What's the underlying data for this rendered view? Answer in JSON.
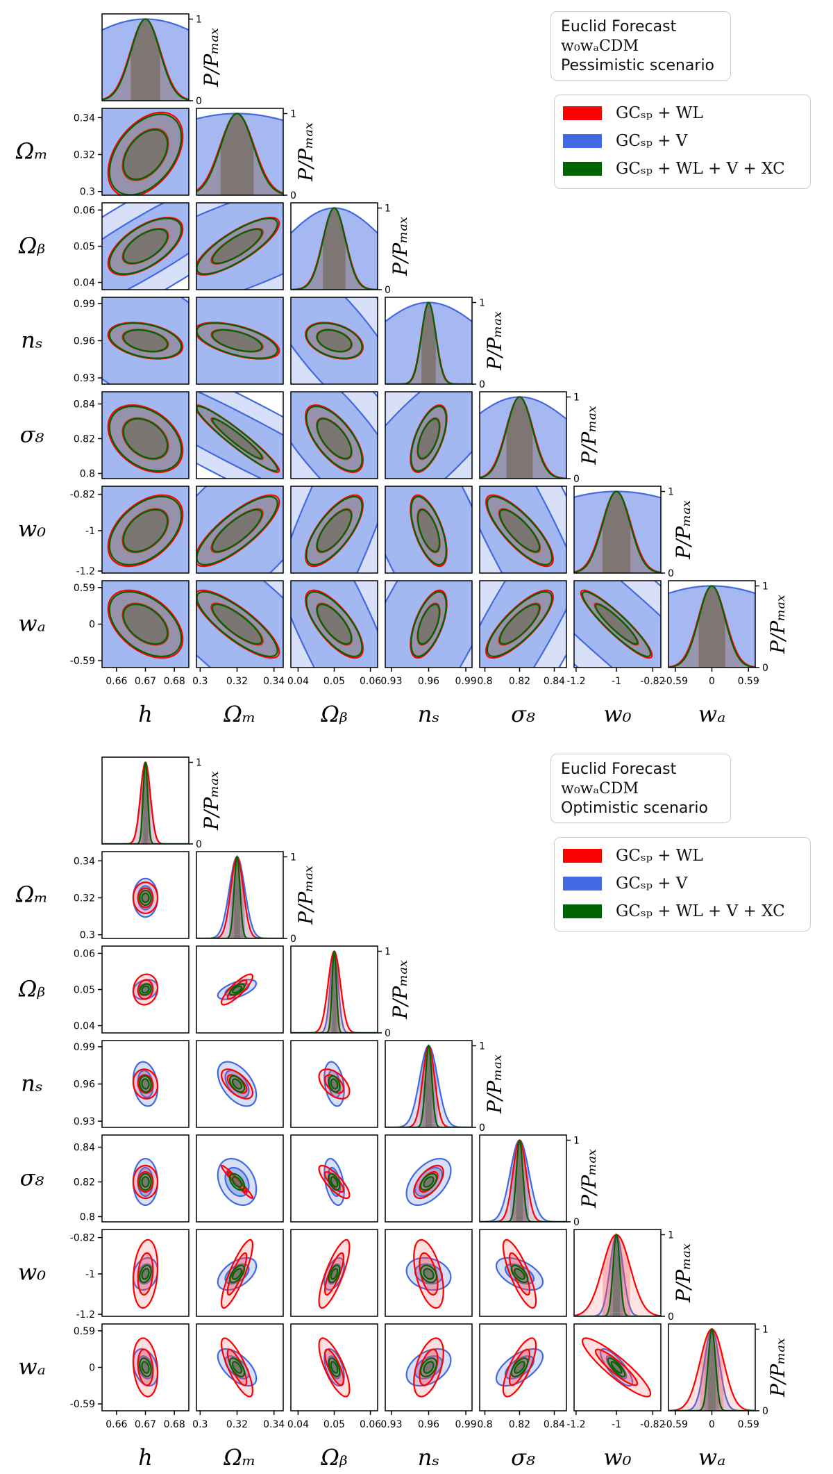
{
  "chart_data": [
    {
      "type": "corner",
      "panel": "pessimistic",
      "title_lines": [
        "Euclid Forecast",
        "w0waCDM",
        "Pessimistic scenario"
      ],
      "title_display": {
        "line1": "Euclid Forecast",
        "model": "w₀wₐCDM",
        "scenario": "Pessimistic scenario"
      },
      "diag_ylabel": "P/Pmax",
      "parameters": [
        {
          "key": "h",
          "label": "h",
          "fiducial": 0.67,
          "range": [
            0.655,
            0.685
          ],
          "ticks": [
            0.66,
            0.67,
            0.68
          ],
          "tick_labels": [
            "0.66",
            "0.67",
            "0.68"
          ]
        },
        {
          "key": "Om",
          "label": "Ωm",
          "fiducial": 0.32,
          "range": [
            0.298,
            0.345
          ],
          "ticks": [
            0.3,
            0.32,
            0.34
          ],
          "tick_labels": [
            "0.3",
            "0.32",
            "0.34"
          ]
        },
        {
          "key": "Ob",
          "label": "Ωb",
          "fiducial": 0.05,
          "range": [
            0.038,
            0.062
          ],
          "ticks": [
            0.04,
            0.05,
            0.06
          ],
          "tick_labels": [
            "0.04",
            "0.05",
            "0.06"
          ]
        },
        {
          "key": "ns",
          "label": "ns",
          "fiducial": 0.96,
          "range": [
            0.925,
            0.995
          ],
          "ticks": [
            0.93,
            0.96,
            0.99
          ],
          "tick_labels": [
            "0.93",
            "0.96",
            "0.99"
          ]
        },
        {
          "key": "s8",
          "label": "σ8",
          "fiducial": 0.82,
          "range": [
            0.797,
            0.847
          ],
          "ticks": [
            0.8,
            0.82,
            0.84
          ],
          "tick_labels": [
            "0.8",
            "0.82",
            "0.84"
          ]
        },
        {
          "key": "w0",
          "label": "w0",
          "fiducial": -1.0,
          "range": [
            -1.21,
            -0.78
          ],
          "ticks": [
            -1.2,
            -1.0,
            -0.82
          ],
          "tick_labels": [
            "-1.2",
            "-1",
            "-0.82"
          ]
        },
        {
          "key": "wa",
          "label": "wa",
          "fiducial": 0.0,
          "range": [
            -0.7,
            0.7
          ],
          "ticks": [
            -0.59,
            0.0,
            0.59
          ],
          "tick_labels": [
            "-0.59",
            "0",
            "0.59"
          ]
        }
      ],
      "diag_ticks": [
        "0",
        "1"
      ],
      "series": [
        {
          "name": "GCsp + WL",
          "color": "#ff0000",
          "sigma": {
            "h": 0.0052,
            "Om": 0.0092,
            "Ob": 0.0032,
            "ns": 0.0059,
            "s8": 0.0078,
            "w0": 0.071,
            "wa": 0.22
          },
          "corr": {
            "h-Om": 0.43,
            "h-Ob": 0.6,
            "h-ns": -0.33,
            "h-s8": -0.35,
            "h-w0": 0.45,
            "h-wa": -0.45,
            "Om-Ob": 0.8,
            "Om-ns": -0.55,
            "Om-s8": -0.95,
            "Om-w0": 0.8,
            "Om-wa": -0.82,
            "Ob-ns": -0.35,
            "Ob-s8": -0.65,
            "Ob-w0": 0.72,
            "Ob-wa": -0.72,
            "ns-s8": 0.6,
            "ns-w0": -0.6,
            "ns-wa": 0.6,
            "s8-w0": -0.8,
            "s8-wa": 0.8,
            "w0-wa": -0.92
          }
        },
        {
          "name": "GCsp + V",
          "color": "#4169e1",
          "sigma": {
            "h": 0.028,
            "Om": 0.06,
            "Ob": 0.014,
            "ns": 0.048,
            "s8": 0.034,
            "w0": 0.55,
            "wa": 1.6
          },
          "corr": {
            "h-Om": 0.5,
            "h-Ob": 0.9,
            "h-ns": -0.7,
            "h-s8": -0.6,
            "h-w0": 0.6,
            "h-wa": -0.6,
            "Om-Ob": 0.8,
            "Om-ns": -0.7,
            "Om-s8": -0.95,
            "Om-w0": 0.9,
            "Om-wa": -0.9,
            "Ob-ns": -0.8,
            "Ob-s8": -0.8,
            "Ob-w0": 0.85,
            "Ob-wa": -0.85,
            "ns-s8": 0.8,
            "ns-w0": -0.8,
            "ns-wa": 0.8,
            "s8-w0": -0.9,
            "s8-wa": 0.9,
            "w0-wa": -0.95
          }
        },
        {
          "name": "GCsp + WL + V + XC",
          "color": "#006400",
          "sigma": {
            "h": 0.005,
            "Om": 0.0088,
            "Ob": 0.0031,
            "ns": 0.0057,
            "s8": 0.0075,
            "w0": 0.068,
            "wa": 0.21
          },
          "corr": {
            "h-Om": 0.43,
            "h-Ob": 0.6,
            "h-ns": -0.33,
            "h-s8": -0.35,
            "h-w0": 0.45,
            "h-wa": -0.45,
            "Om-Ob": 0.8,
            "Om-ns": -0.55,
            "Om-s8": -0.95,
            "Om-w0": 0.8,
            "Om-wa": -0.82,
            "Ob-ns": -0.35,
            "Ob-s8": -0.65,
            "Ob-w0": 0.72,
            "Ob-wa": -0.72,
            "ns-s8": 0.6,
            "ns-w0": -0.6,
            "ns-wa": 0.6,
            "s8-w0": -0.8,
            "s8-wa": 0.8,
            "w0-wa": -0.92
          }
        }
      ]
    },
    {
      "type": "corner",
      "panel": "optimistic",
      "title_lines": [
        "Euclid Forecast",
        "w0waCDM",
        "Optimistic scenario"
      ],
      "title_display": {
        "line1": "Euclid Forecast",
        "model": "w₀wₐCDM",
        "scenario": "Optimistic scenario"
      },
      "diag_ylabel": "P/Pmax",
      "parameters": [
        {
          "key": "h",
          "label": "h",
          "fiducial": 0.67,
          "range": [
            0.655,
            0.685
          ],
          "ticks": [
            0.66,
            0.67,
            0.68
          ],
          "tick_labels": [
            "0.66",
            "0.67",
            "0.68"
          ]
        },
        {
          "key": "Om",
          "label": "Ωm",
          "fiducial": 0.32,
          "range": [
            0.298,
            0.345
          ],
          "ticks": [
            0.3,
            0.32,
            0.34
          ],
          "tick_labels": [
            "0.3",
            "0.32",
            "0.34"
          ]
        },
        {
          "key": "Ob",
          "label": "Ωb",
          "fiducial": 0.05,
          "range": [
            0.038,
            0.062
          ],
          "ticks": [
            0.04,
            0.05,
            0.06
          ],
          "tick_labels": [
            "0.04",
            "0.05",
            "0.06"
          ]
        },
        {
          "key": "ns",
          "label": "ns",
          "fiducial": 0.96,
          "range": [
            0.925,
            0.995
          ],
          "ticks": [
            0.93,
            0.96,
            0.99
          ],
          "tick_labels": [
            "0.93",
            "0.96",
            "0.99"
          ]
        },
        {
          "key": "s8",
          "label": "σ8",
          "fiducial": 0.82,
          "range": [
            0.797,
            0.847
          ],
          "ticks": [
            0.8,
            0.82,
            0.84
          ],
          "tick_labels": [
            "0.8",
            "0.82",
            "0.84"
          ]
        },
        {
          "key": "w0",
          "label": "w0",
          "fiducial": -1.0,
          "range": [
            -1.21,
            -0.78
          ],
          "ticks": [
            -1.2,
            -1.0,
            -0.82
          ],
          "tick_labels": [
            "-1.2",
            "-1",
            "-0.82"
          ]
        },
        {
          "key": "wa",
          "label": "wa",
          "fiducial": 0.0,
          "range": [
            -0.7,
            0.7
          ],
          "ticks": [
            -0.59,
            0.0,
            0.59
          ],
          "tick_labels": [
            "-0.59",
            "0",
            "0.59"
          ]
        }
      ],
      "diag_ticks": [
        "0",
        "1"
      ],
      "series": [
        {
          "name": "GCsp + WL",
          "color": "#ff0000",
          "sigma": {
            "h": 0.0017,
            "Om": 0.0034,
            "Ob": 0.0017,
            "ns": 0.0048,
            "s8": 0.0038,
            "w0": 0.068,
            "wa": 0.19
          },
          "corr": {
            "h-Om": 0.0,
            "h-Ob": 0.1,
            "h-ns": -0.1,
            "h-s8": 0.0,
            "h-w0": 0.2,
            "h-wa": -0.2,
            "Om-Ob": 0.85,
            "Om-ns": -0.6,
            "Om-s8": -0.97,
            "Om-w0": 0.85,
            "Om-wa": -0.8,
            "Ob-ns": -0.5,
            "Ob-s8": -0.8,
            "Ob-w0": 0.8,
            "Ob-wa": -0.75,
            "ns-s8": 0.6,
            "ns-w0": -0.5,
            "ns-wa": 0.5,
            "s8-w0": -0.8,
            "s8-wa": 0.75,
            "w0-wa": -0.9
          }
        },
        {
          "name": "GCsp + V",
          "color": "#4169e1",
          "sigma": {
            "h": 0.0017,
            "Om": 0.0042,
            "Ob": 0.0011,
            "ns": 0.0072,
            "s8": 0.0054,
            "w0": 0.032,
            "wa": 0.12
          },
          "corr": {
            "h-Om": 0.0,
            "h-Ob": 0.2,
            "h-ns": -0.2,
            "h-s8": 0.0,
            "h-w0": 0.2,
            "h-wa": -0.3,
            "Om-Ob": 0.6,
            "Om-ns": -0.5,
            "Om-s8": -0.3,
            "Om-w0": 0.5,
            "Om-wa": -0.6,
            "Ob-ns": -0.3,
            "Ob-s8": -0.4,
            "Ob-w0": 0.5,
            "Ob-wa": -0.5,
            "ns-s8": 0.5,
            "ns-w0": -0.2,
            "ns-wa": 0.4,
            "s8-w0": -0.5,
            "s8-wa": 0.6,
            "w0-wa": -0.8
          }
        },
        {
          "name": "GCsp + WL + V + XC",
          "color": "#006400",
          "sigma": {
            "h": 0.0008,
            "Om": 0.0016,
            "Ob": 0.0006,
            "ns": 0.0026,
            "s8": 0.0019,
            "w0": 0.017,
            "wa": 0.06
          },
          "corr": {
            "h-Om": 0.0,
            "h-Ob": 0.2,
            "h-ns": -0.1,
            "h-s8": 0.0,
            "h-w0": 0.3,
            "h-wa": -0.3,
            "Om-Ob": 0.6,
            "Om-ns": -0.5,
            "Om-s8": -0.5,
            "Om-w0": 0.6,
            "Om-wa": -0.6,
            "Ob-ns": -0.3,
            "Ob-s8": -0.5,
            "Ob-w0": 0.5,
            "Ob-wa": -0.5,
            "ns-s8": 0.5,
            "ns-w0": -0.3,
            "ns-wa": 0.4,
            "s8-w0": -0.6,
            "s8-wa": 0.6,
            "w0-wa": -0.8
          }
        }
      ]
    }
  ],
  "legend": {
    "items": [
      {
        "name": "GCsp + WL",
        "label": "GCₛₚ + WL",
        "color": "#ff0000"
      },
      {
        "name": "GCsp + V",
        "label": "GCₛₚ + V",
        "color": "#4169e1"
      },
      {
        "name": "GCsp + WL + V + XC",
        "label": "GCₛₚ + WL + V + XC",
        "color": "#006400"
      }
    ]
  },
  "axis_labels_display": {
    "h": "h",
    "Om": "Ωₘ",
    "Ob": "Ωᵦ",
    "ns": "nₛ",
    "s8": "σ₈",
    "w0": "w₀",
    "wa": "wₐ"
  },
  "diag_label_display": "P/Pₘₐₓ"
}
